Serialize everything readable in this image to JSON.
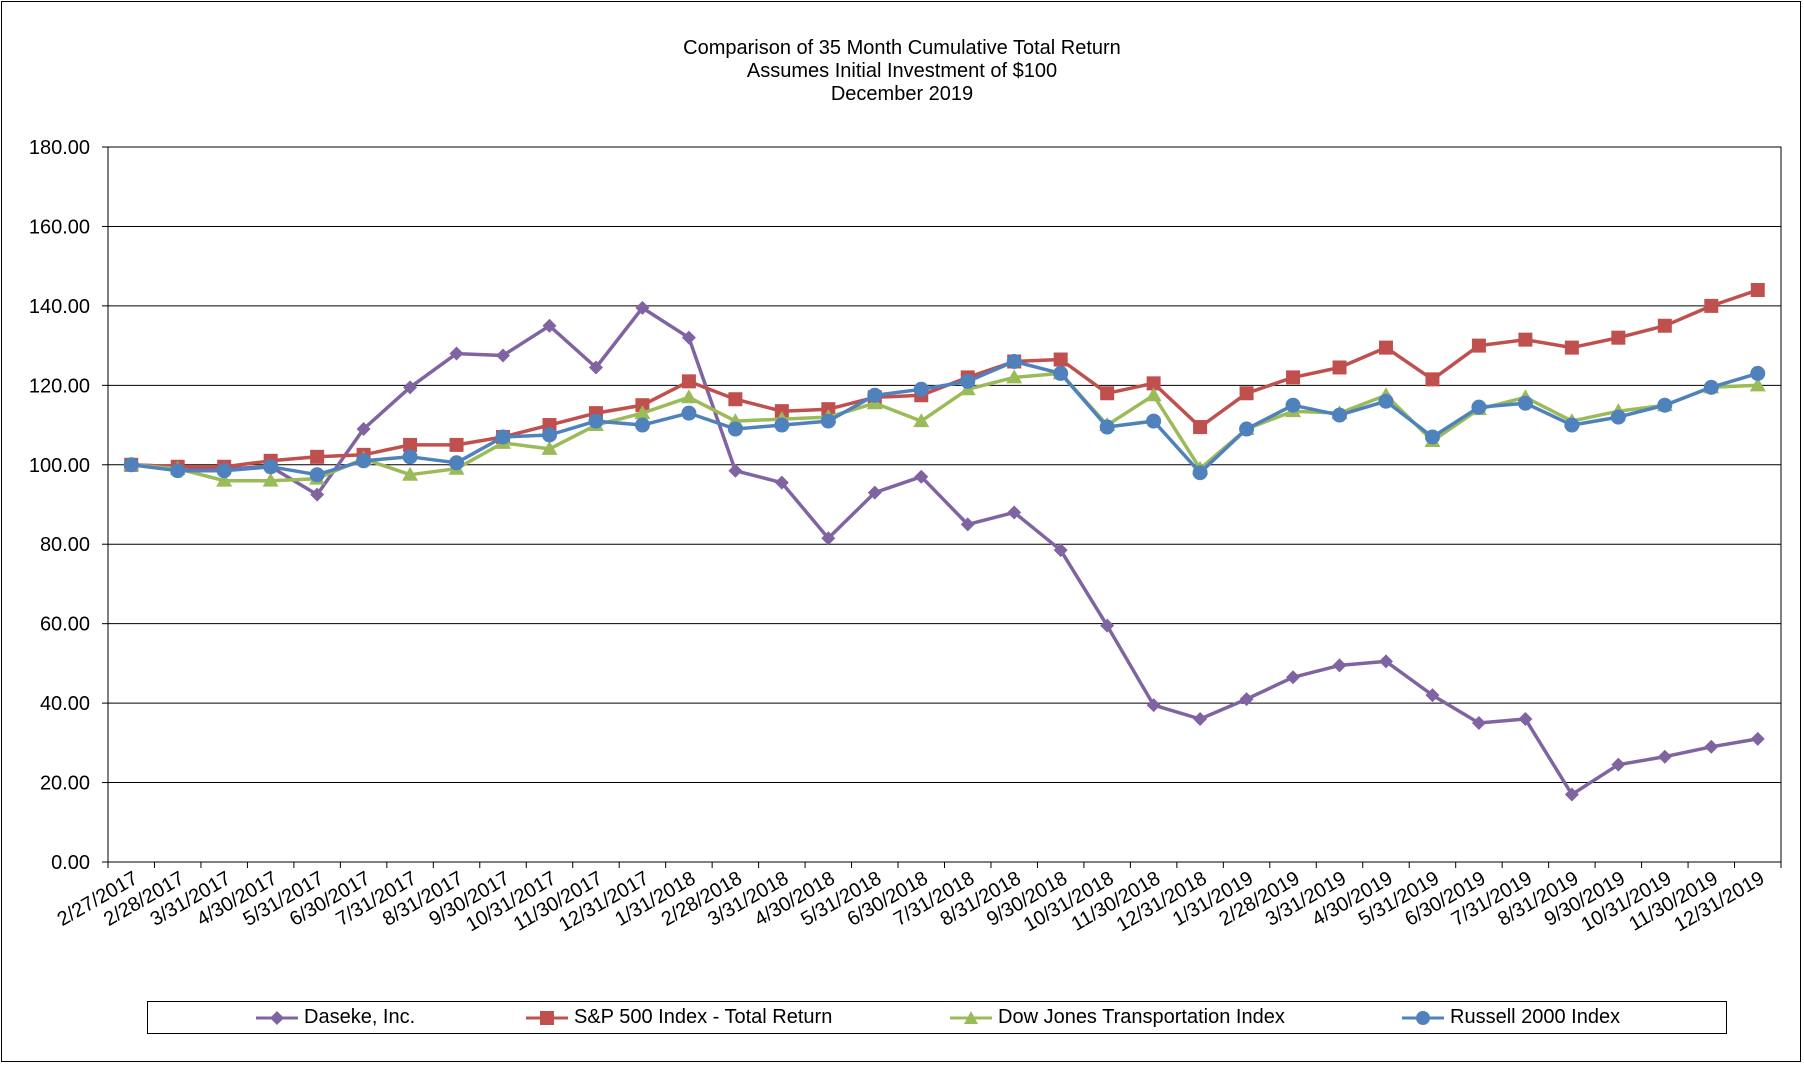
{
  "chart_data": {
    "type": "line",
    "title": "Comparison of 35 Month Cumulative Total Return",
    "subtitle": "Assumes Initial Investment of $100",
    "subtitle2": "December 2019",
    "xlabel": "",
    "ylabel": "",
    "ylim": [
      0,
      180
    ],
    "yticks": [
      "0.00",
      "20.00",
      "40.00",
      "60.00",
      "80.00",
      "100.00",
      "120.00",
      "140.00",
      "160.00",
      "180.00"
    ],
    "categories": [
      "2/27/2017",
      "2/28/2017",
      "3/31/2017",
      "4/30/2017",
      "5/31/2017",
      "6/30/2017",
      "7/31/2017",
      "8/31/2017",
      "9/30/2017",
      "10/31/2017",
      "11/30/2017",
      "12/31/2017",
      "1/31/2018",
      "2/28/2018",
      "3/31/2018",
      "4/30/2018",
      "5/31/2018",
      "6/30/2018",
      "7/31/2018",
      "8/31/2018",
      "9/30/2018",
      "10/31/2018",
      "11/30/2018",
      "12/31/2018",
      "1/31/2019",
      "2/28/2019",
      "3/31/2019",
      "4/30/2019",
      "5/31/2019",
      "6/30/2019",
      "7/31/2019",
      "8/31/2019",
      "9/30/2019",
      "10/31/2019",
      "11/30/2019",
      "12/31/2019"
    ],
    "grid": true,
    "legend_position": "bottom",
    "series": [
      {
        "name": "Daseke, Inc.",
        "color": "#8064A2",
        "marker": "diamond",
        "values": [
          100.0,
          99.5,
          99.0,
          99.5,
          92.5,
          109.0,
          119.5,
          128.0,
          127.5,
          135.0,
          124.5,
          139.5,
          132.0,
          98.5,
          95.5,
          81.5,
          93.0,
          97.0,
          85.0,
          88.0,
          78.5,
          59.5,
          39.5,
          36.0,
          41.0,
          46.5,
          49.5,
          50.5,
          42.0,
          35.0,
          36.0,
          17.0,
          24.5,
          26.5,
          29.0,
          31.0
        ]
      },
      {
        "name": "S&P 500 Index - Total Return",
        "color": "#C0504D",
        "marker": "square",
        "values": [
          100.0,
          99.5,
          99.5,
          101.0,
          102.0,
          102.5,
          105.0,
          105.0,
          107.0,
          110.0,
          113.0,
          115.0,
          121.0,
          116.5,
          113.5,
          114.0,
          117.0,
          117.5,
          122.0,
          126.0,
          126.5,
          118.0,
          120.5,
          109.5,
          118.0,
          122.0,
          124.5,
          129.5,
          121.5,
          130.0,
          131.5,
          129.5,
          132.0,
          135.0,
          140.0,
          144.0
        ]
      },
      {
        "name": "Dow Jones Transportation Index",
        "color": "#9BBB59",
        "marker": "triangle",
        "values": [
          100.0,
          99.0,
          96.0,
          96.0,
          96.5,
          101.5,
          97.5,
          99.0,
          105.5,
          104.0,
          110.0,
          113.0,
          117.0,
          111.0,
          111.5,
          112.0,
          115.5,
          111.0,
          119.0,
          122.0,
          123.0,
          110.0,
          117.5,
          99.0,
          109.0,
          113.5,
          113.0,
          117.5,
          106.0,
          114.0,
          117.0,
          111.0,
          113.5,
          115.0,
          119.5,
          120.0
        ]
      },
      {
        "name": "Russell 2000 Index",
        "color": "#4F81BD",
        "marker": "circle",
        "values": [
          100.0,
          98.5,
          98.5,
          99.5,
          97.5,
          101.0,
          102.0,
          100.5,
          107.0,
          107.5,
          111.0,
          110.0,
          113.0,
          109.0,
          110.0,
          111.0,
          117.5,
          119.0,
          121.0,
          126.0,
          123.0,
          109.5,
          111.0,
          98.0,
          109.0,
          115.0,
          112.5,
          116.0,
          107.0,
          114.5,
          115.5,
          110.0,
          112.0,
          115.0,
          119.5,
          123.0
        ]
      }
    ]
  }
}
